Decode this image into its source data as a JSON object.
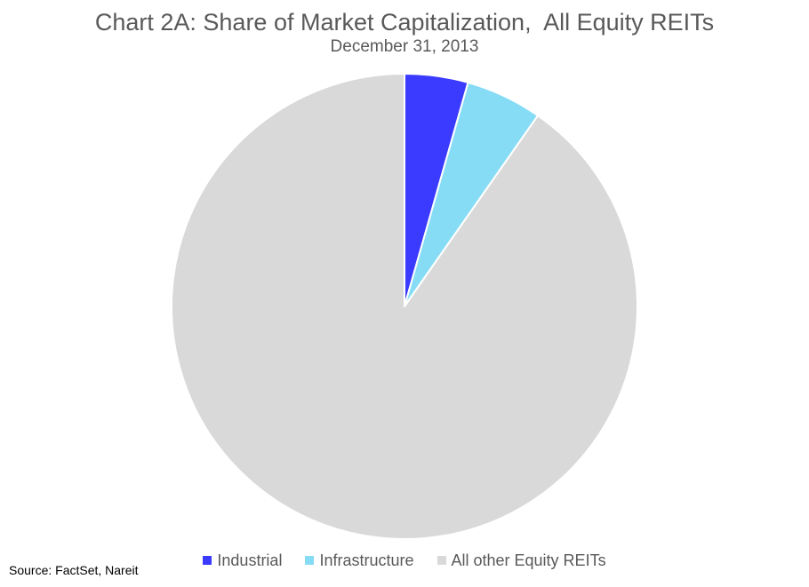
{
  "chart_data": {
    "type": "pie",
    "title": "Chart 2A: Share of Market Capitalization,  All Equity REITs",
    "subtitle": "December 31, 2013",
    "slices": [
      {
        "label": "Industrial",
        "value": 4.4,
        "color": "#3b3bff"
      },
      {
        "label": "Infrastructure",
        "value": 5.3,
        "color": "#87dcf5"
      },
      {
        "label": "All other Equity REITs",
        "value": 90.3,
        "color": "#d9d9d9"
      }
    ],
    "start_angle": "12 o'clock",
    "direction": "clockwise",
    "legend_position": "bottom"
  },
  "source": "Source: FactSet, Nareit"
}
